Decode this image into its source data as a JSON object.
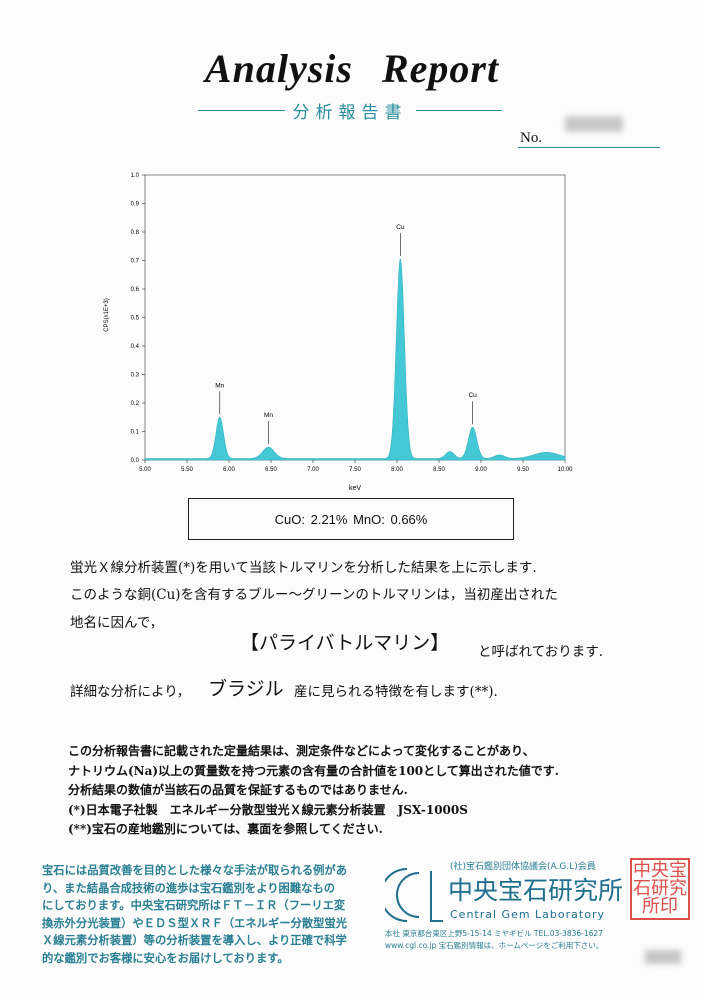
{
  "header": {
    "title": "Analysis  Report",
    "subtitle": "分析報告書",
    "no_label": "No."
  },
  "chart_data": {
    "type": "area",
    "xlabel": "keV",
    "ylabel": "CPS(x1E+3)",
    "xlim": [
      5.0,
      10.0
    ],
    "ylim": [
      0.0,
      1.0
    ],
    "xticks": [
      "5.00",
      "5.50",
      "6.00",
      "6.50",
      "7.00",
      "7.50",
      "8.00",
      "8.50",
      "9.00",
      "9.50",
      "10.00"
    ],
    "yticks": [
      "0.0",
      "0.1",
      "0.2",
      "0.3",
      "0.4",
      "0.5",
      "0.6",
      "0.7",
      "0.8",
      "0.9",
      "1.0"
    ],
    "baseline": 0.005,
    "peaks": [
      {
        "x": 5.89,
        "y": 0.145,
        "sigma_kev": 0.045,
        "label": "Mn"
      },
      {
        "x": 6.47,
        "y": 0.04,
        "sigma_kev": 0.07,
        "label": "Mn"
      },
      {
        "x": 8.04,
        "y": 0.7,
        "sigma_kev": 0.048,
        "label": "Cu"
      },
      {
        "x": 8.63,
        "y": 0.025,
        "sigma_kev": 0.05,
        "label": ""
      },
      {
        "x": 8.9,
        "y": 0.11,
        "sigma_kev": 0.05,
        "label": "Cu"
      },
      {
        "x": 9.22,
        "y": 0.013,
        "sigma_kev": 0.06,
        "label": ""
      },
      {
        "x": 9.78,
        "y": 0.022,
        "sigma_kev": 0.15,
        "label": ""
      }
    ],
    "fill_color": "#45c8d6",
    "grid": false
  },
  "result": "CuO: 2.21%  MnO: 0.66%",
  "body": {
    "line1": "蛍光Ｘ線分析装置(*)を用いて当該トルマリンを分析した結果を上に示します.",
    "line2": "このような銅(Cu)を含有するブルー～グリーンのトルマリンは，当初産出された",
    "line3": "地名に因んで，",
    "name": "【パライバトルマリン】",
    "line3b": "と呼ばれております.",
    "line4a": "詳細な分析により，",
    "origin": "ブラジル",
    "line4b": "産に見られる特徴を有します(**).",
    "notes": [
      "この分析報告書に記載された定量結果は、測定条件などによって変化することがあり、",
      "ナトリウム(Na)以上の質量数を持つ元素の含有量の合計値を100として算出された値です.",
      "分析結果の数値が当該石の品質を保証するものではありません.",
      "(*)日本電子社製　エネルギー分散型蛍光Ｘ線元素分析装置　JSX-1000S",
      "(**)宝石の産地鑑別については、裏面を参照してください."
    ]
  },
  "footer": {
    "note_lines": [
      "宝石には品質改善を目的とした様々な手法が取られる例があ",
      "り、また結晶合成技術の進歩は宝石鑑別をより困難なもの",
      "にしております。中央宝石研究所はＦＴ－ＩＲ（フーリエ変",
      "換赤外分光装置）やＥＤＳ型ＸＲＦ（エネルギー分散型蛍光",
      "Ｘ線元素分析装置）等の分析装置を導入し、より正確で科学",
      "的な鑑別でお客様に安心をお届けしております。"
    ],
    "logo": "CGL",
    "association": "(社)宝石鑑別団体協議会(A.G.L)会員",
    "lab_jp": "中央宝石研究所",
    "lab_en": "Central Gem Laboratory",
    "address": "本社 東京都台東区上野5-15-14 ミヤギビル TEL.03-3836-1627",
    "web": "www.cgl.co.jp  宝石鑑別情報は、ホームページをご利用下さい。",
    "seal": "中央宝石研究所印",
    "accent": "#2a7f94",
    "seal_color": "#d8332b"
  }
}
